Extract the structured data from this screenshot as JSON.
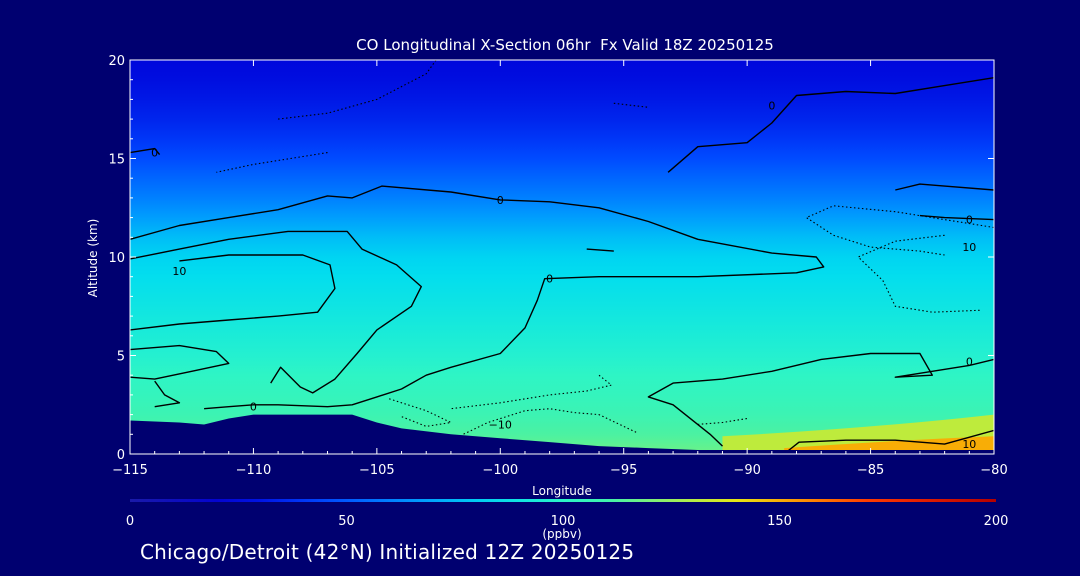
{
  "chart_data": {
    "type": "heatmap",
    "title": "CO Longitudinal X-Section 06hr  Fx Valid 18Z 20250125",
    "xlabel": "Longitude",
    "ylabel": "Altitude (km)",
    "xlim": [
      -115,
      -80
    ],
    "ylim": [
      0,
      20
    ],
    "x_ticks": [
      -115,
      -110,
      -105,
      -100,
      -95,
      -90,
      -85,
      -80
    ],
    "x_tick_labels": [
      "−115",
      "−110",
      "−105",
      "−100",
      "−95",
      "−90",
      "−85",
      "−80"
    ],
    "y_ticks": [
      0,
      5,
      10,
      15,
      20
    ],
    "y_tick_labels": [
      "0",
      "5",
      "10",
      "15",
      "20"
    ],
    "colorbar": {
      "label": "(ppbv)",
      "min": 0,
      "max": 200,
      "ticks": [
        0,
        50,
        100,
        150,
        200
      ],
      "tick_labels": [
        "0",
        "50",
        "100",
        "150",
        "200"
      ]
    },
    "co_profile": {
      "altitude_km": [
        0,
        1,
        2,
        3,
        4,
        5,
        6,
        7,
        8,
        9,
        10,
        11,
        12,
        13,
        14,
        15,
        16,
        17,
        18,
        19,
        20
      ],
      "value_ppbv": [
        118,
        113,
        108,
        104,
        101,
        97,
        94,
        91,
        88,
        85,
        82,
        76,
        68,
        60,
        53,
        46,
        40,
        35,
        31,
        28,
        26
      ]
    },
    "terrain_km": {
      "lon": [
        -115,
        -113,
        -112,
        -111,
        -110,
        -108,
        -106,
        -105,
        -104,
        -102,
        -100,
        -98,
        -96,
        -94,
        -92,
        -90,
        -88,
        -85,
        -80
      ],
      "alt": [
        1.7,
        1.6,
        1.5,
        1.8,
        2.0,
        2.0,
        2.0,
        1.6,
        1.3,
        1.0,
        0.8,
        0.6,
        0.4,
        0.3,
        0.2,
        0.2,
        0.2,
        0.2,
        0.2
      ]
    },
    "contour_labels": [
      {
        "text": "0",
        "lon": -114.0,
        "alt": 15.3
      },
      {
        "text": "0",
        "lon": -100.0,
        "alt": 12.9
      },
      {
        "text": "0",
        "lon": -98.0,
        "alt": 8.9
      },
      {
        "text": "0",
        "lon": -89.0,
        "alt": 17.7
      },
      {
        "text": "0",
        "lon": -81.0,
        "alt": 11.9
      },
      {
        "text": "0",
        "lon": -81.0,
        "alt": 4.7
      },
      {
        "text": "0",
        "lon": -110.0,
        "alt": 2.4
      },
      {
        "text": "10",
        "lon": -113.0,
        "alt": 9.3
      },
      {
        "text": "10",
        "lon": -81.0,
        "alt": 10.5
      },
      {
        "text": "−10",
        "lon": -100.0,
        "alt": 1.5
      },
      {
        "text": "10",
        "lon": -81.0,
        "alt": 0.5
      }
    ],
    "contour_lines": [
      {
        "style": "solid",
        "points": [
          [
            -115,
            10.9
          ],
          [
            -113,
            11.6
          ],
          [
            -111,
            12.0
          ],
          [
            -109,
            12.4
          ],
          [
            -107,
            13.1
          ],
          [
            -106,
            13.0
          ],
          [
            -104.8,
            13.6
          ],
          [
            -102,
            13.3
          ],
          [
            -100,
            12.9
          ],
          [
            -98,
            12.8
          ],
          [
            -96,
            12.5
          ],
          [
            -94,
            11.8
          ],
          [
            -92,
            10.9
          ],
          [
            -89,
            10.2
          ],
          [
            -87.2,
            10.0
          ],
          [
            -86.9,
            9.5
          ],
          [
            -88,
            9.2
          ],
          [
            -92,
            9.0
          ],
          [
            -96,
            9.0
          ],
          [
            -98.2,
            8.9
          ],
          [
            -98.5,
            7.8
          ],
          [
            -99,
            6.4
          ],
          [
            -100,
            5.1
          ],
          [
            -102,
            4.4
          ],
          [
            -103,
            4.0
          ],
          [
            -104,
            3.3
          ],
          [
            -105,
            2.9
          ],
          [
            -106,
            2.5
          ],
          [
            -107,
            2.4
          ],
          [
            -109,
            2.5
          ],
          [
            -110,
            2.5
          ],
          [
            -111,
            2.4
          ],
          [
            -112,
            2.3
          ]
        ]
      },
      {
        "style": "solid",
        "points": [
          [
            -115,
            9.9
          ],
          [
            -113,
            10.4
          ],
          [
            -111,
            10.9
          ],
          [
            -108.6,
            11.3
          ],
          [
            -106.2,
            11.3
          ],
          [
            -105.6,
            10.4
          ],
          [
            -104.2,
            9.6
          ],
          [
            -103.2,
            8.5
          ],
          [
            -103.6,
            7.5
          ],
          [
            -105,
            6.3
          ],
          [
            -105.8,
            5.1
          ],
          [
            -106.7,
            3.8
          ],
          [
            -107.6,
            3.1
          ],
          [
            -108.1,
            3.4
          ],
          [
            -108.9,
            4.4
          ],
          [
            -109.3,
            3.6
          ]
        ]
      },
      {
        "style": "solid",
        "points": [
          [
            -115,
            6.3
          ],
          [
            -113,
            6.6
          ],
          [
            -111,
            6.8
          ],
          [
            -109,
            7.0
          ],
          [
            -107.4,
            7.2
          ],
          [
            -106.7,
            8.4
          ],
          [
            -106.9,
            9.6
          ],
          [
            -108,
            10.1
          ],
          [
            -111,
            10.1
          ],
          [
            -113,
            9.8
          ]
        ]
      },
      {
        "style": "solid",
        "points": [
          [
            -115,
            5.3
          ],
          [
            -113,
            5.5
          ],
          [
            -111.5,
            5.2
          ],
          [
            -111,
            4.6
          ],
          [
            -112.5,
            4.2
          ],
          [
            -114,
            3.8
          ],
          [
            -115,
            3.9
          ]
        ]
      },
      {
        "style": "solid",
        "points": [
          [
            -114,
            3.7
          ],
          [
            -113.6,
            3.0
          ],
          [
            -113,
            2.6
          ],
          [
            -114,
            2.4
          ]
        ]
      },
      {
        "style": "solid",
        "points": [
          [
            -91,
            0.4
          ],
          [
            -91.5,
            1.0
          ],
          [
            -93,
            2.5
          ],
          [
            -94,
            2.9
          ],
          [
            -93,
            3.6
          ],
          [
            -91,
            3.8
          ],
          [
            -89,
            4.2
          ],
          [
            -87,
            4.8
          ],
          [
            -85,
            5.1
          ],
          [
            -83,
            5.1
          ],
          [
            -82.5,
            4.0
          ],
          [
            -84,
            3.9
          ],
          [
            -81,
            4.5
          ],
          [
            -80,
            4.8
          ]
        ]
      },
      {
        "style": "solid",
        "points": [
          [
            -88.4,
            0.1
          ],
          [
            -87.9,
            0.6
          ],
          [
            -86,
            0.7
          ],
          [
            -84,
            0.7
          ],
          [
            -82,
            0.5
          ],
          [
            -80,
            1.2
          ]
        ]
      },
      {
        "style": "solid",
        "points": [
          [
            -93.2,
            14.3
          ],
          [
            -92,
            15.6
          ],
          [
            -90,
            15.8
          ],
          [
            -89,
            16.8
          ],
          [
            -88,
            18.2
          ],
          [
            -86,
            18.4
          ],
          [
            -84,
            18.3
          ],
          [
            -82,
            18.7
          ],
          [
            -80,
            19.1
          ]
        ]
      },
      {
        "style": "solid",
        "points": [
          [
            -84,
            13.4
          ],
          [
            -83,
            13.7
          ],
          [
            -82,
            13.6
          ],
          [
            -80,
            13.4
          ]
        ]
      },
      {
        "style": "solid",
        "points": [
          [
            -83,
            12.1
          ],
          [
            -82,
            12.0
          ],
          [
            -80,
            11.9
          ]
        ]
      },
      {
        "style": "solid",
        "points": [
          [
            -115,
            15.3
          ],
          [
            -114,
            15.5
          ],
          [
            -113.8,
            15.2
          ]
        ]
      },
      {
        "style": "solid",
        "points": [
          [
            -96.5,
            10.4
          ],
          [
            -95.4,
            10.3
          ]
        ]
      },
      {
        "style": "dotted",
        "points": [
          [
            -94.5,
            1.1
          ],
          [
            -96,
            2.0
          ],
          [
            -97,
            2.1
          ],
          [
            -98,
            2.3
          ],
          [
            -99,
            2.2
          ],
          [
            -100.5,
            1.6
          ],
          [
            -101.5,
            1.0
          ]
        ]
      },
      {
        "style": "dotted",
        "points": [
          [
            -96,
            4.0
          ],
          [
            -95.5,
            3.5
          ],
          [
            -96.5,
            3.2
          ],
          [
            -98,
            3.0
          ],
          [
            -100,
            2.6
          ],
          [
            -102,
            2.3
          ]
        ]
      },
      {
        "style": "dotted",
        "points": [
          [
            -104.5,
            2.8
          ],
          [
            -103,
            2.2
          ],
          [
            -102,
            1.6
          ],
          [
            -103,
            1.4
          ],
          [
            -104,
            1.9
          ]
        ]
      },
      {
        "style": "dotted",
        "points": [
          [
            -109,
            17.0
          ],
          [
            -107,
            17.3
          ],
          [
            -105,
            18.0
          ],
          [
            -103,
            19.3
          ],
          [
            -102.6,
            20.0
          ]
        ]
      },
      {
        "style": "dotted",
        "points": [
          [
            -107,
            15.3
          ],
          [
            -108.5,
            15.0
          ],
          [
            -110,
            14.7
          ],
          [
            -111.5,
            14.3
          ]
        ]
      },
      {
        "style": "dotted",
        "points": [
          [
            -95.4,
            17.8
          ],
          [
            -94,
            17.6
          ]
        ]
      },
      {
        "style": "dotted",
        "points": [
          [
            -92,
            1.5
          ],
          [
            -91,
            1.6
          ],
          [
            -90,
            1.8
          ]
        ]
      },
      {
        "style": "dotted",
        "points": [
          [
            -82,
            11.1
          ],
          [
            -84,
            10.8
          ],
          [
            -85.5,
            10.0
          ],
          [
            -84.5,
            8.8
          ],
          [
            -84,
            7.5
          ],
          [
            -82.5,
            7.2
          ],
          [
            -80.5,
            7.3
          ]
        ]
      },
      {
        "style": "dotted",
        "points": [
          [
            -80,
            11.5
          ],
          [
            -84,
            12.3
          ],
          [
            -86.5,
            12.6
          ],
          [
            -87.6,
            12.0
          ],
          [
            -86.5,
            11.1
          ],
          [
            -85,
            10.5
          ],
          [
            -83,
            10.3
          ],
          [
            -82,
            10.1
          ]
        ]
      }
    ]
  },
  "footer": {
    "text": "Chicago/Detroit (42°N) Initialized 12Z 20250125"
  }
}
